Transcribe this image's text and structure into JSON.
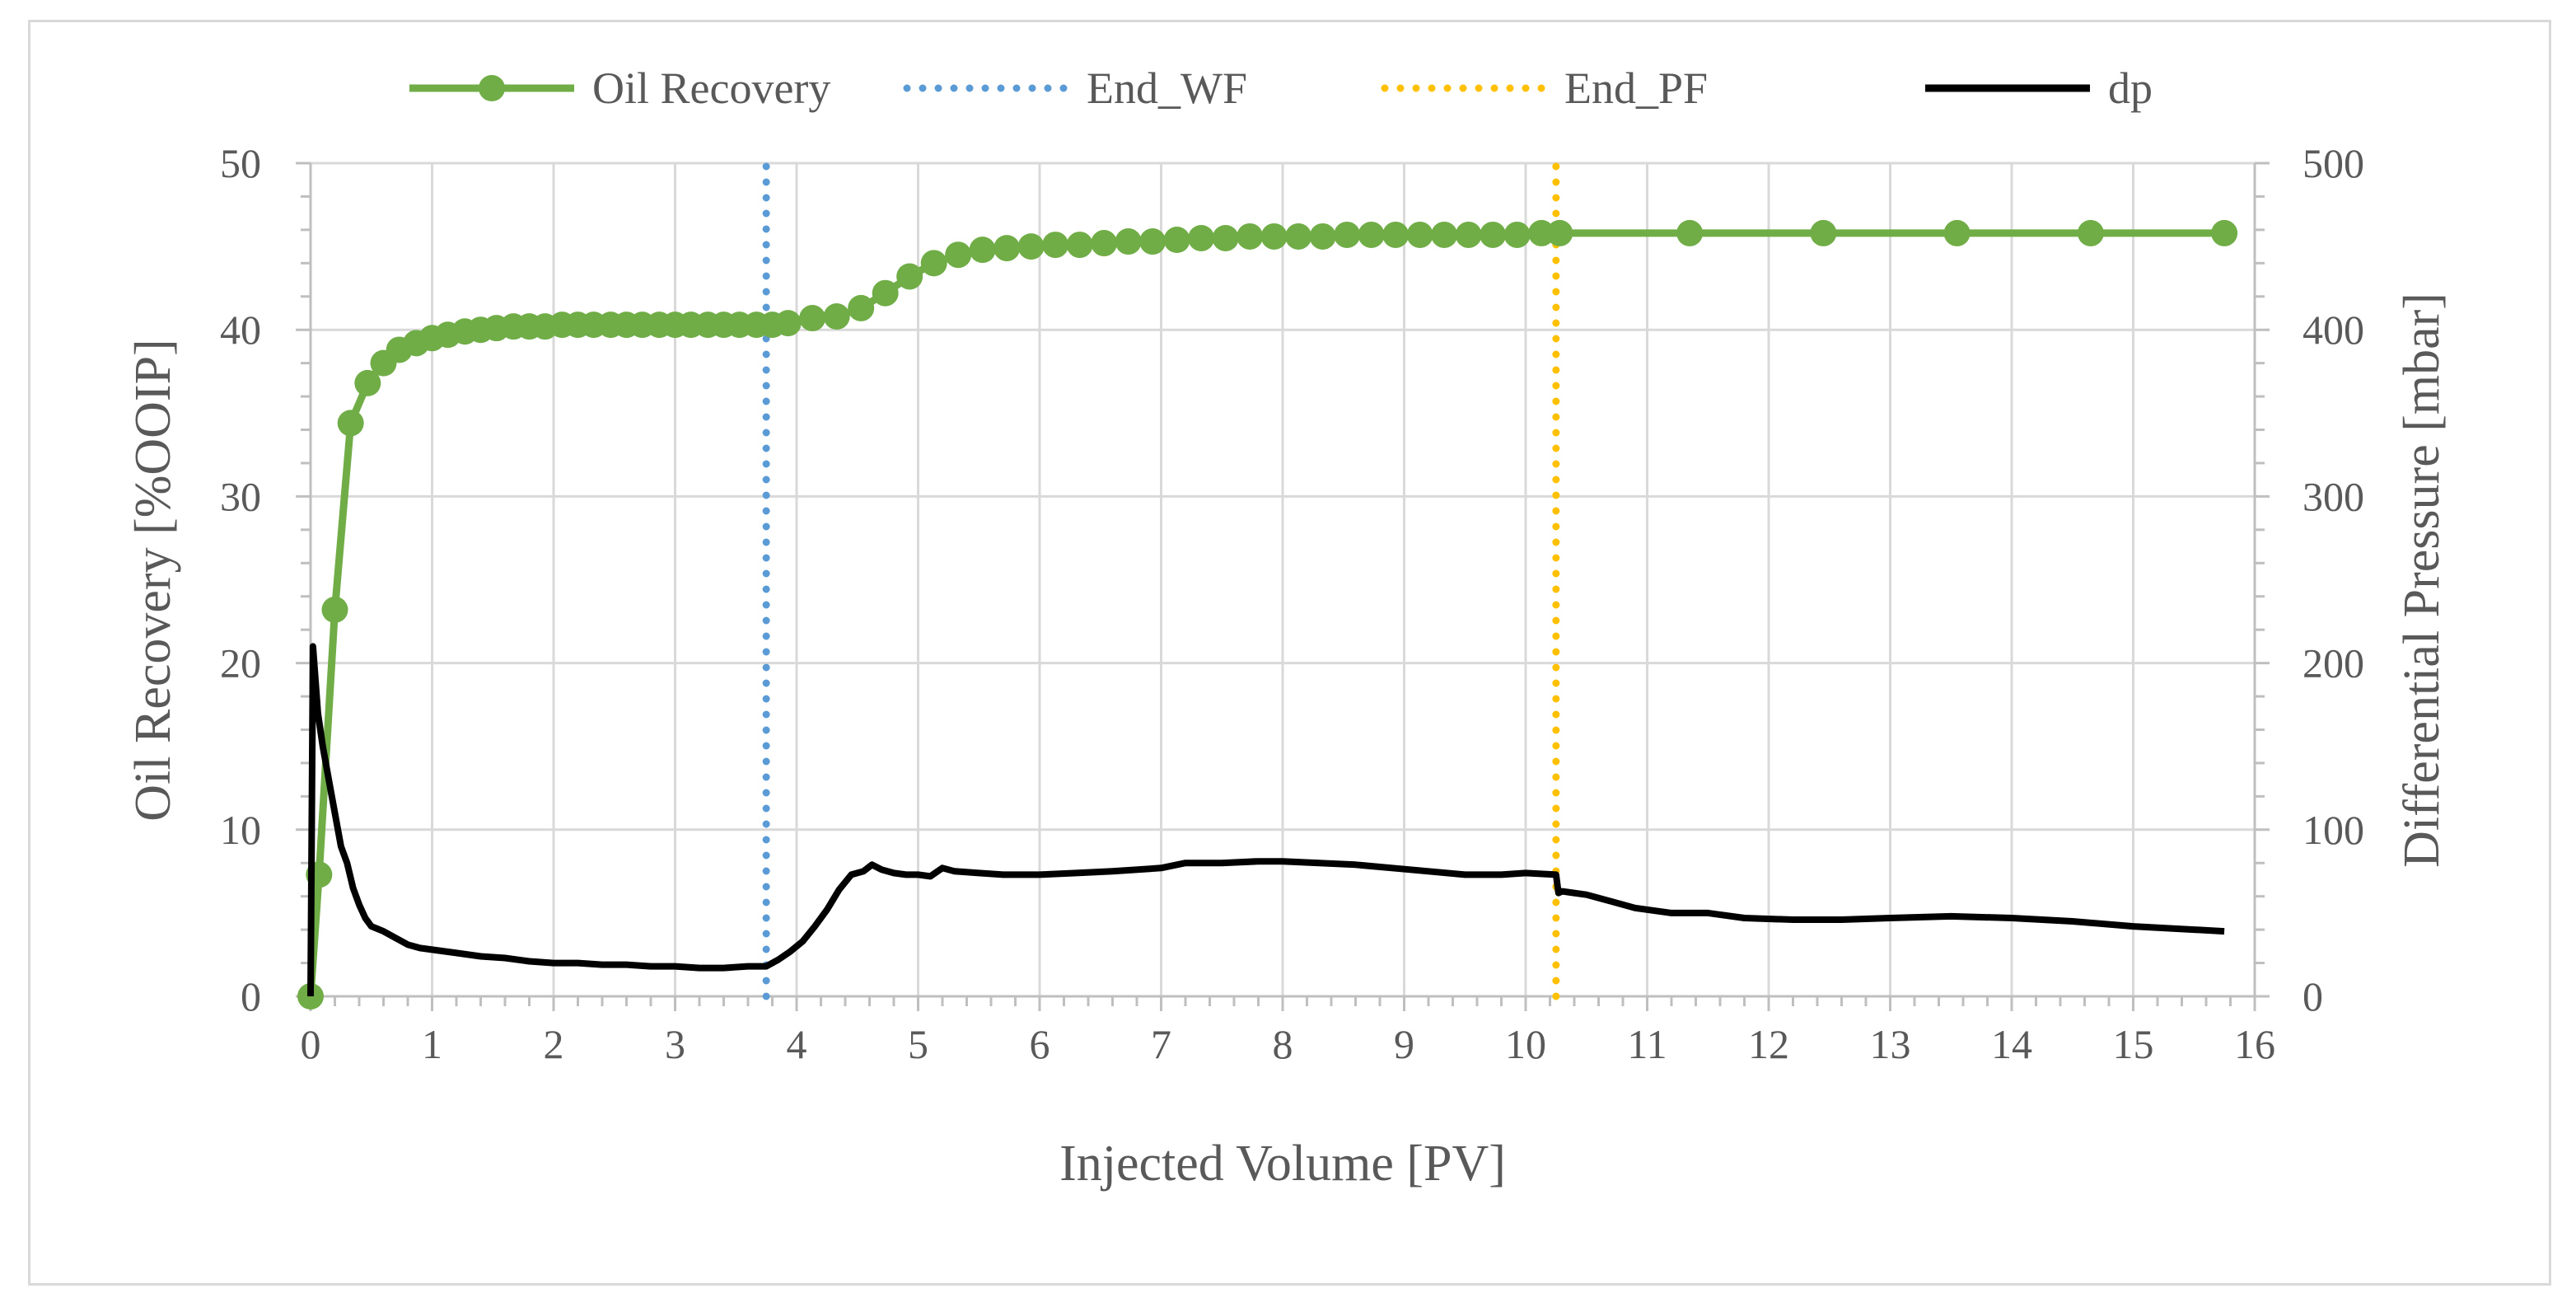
{
  "chart_data": {
    "type": "line",
    "title": "",
    "xlabel": "Injected Volume [PV]",
    "ylabel_left": "Oil Recovery [%OOIP]",
    "ylabel_right": "Differential Pressure [mbar]",
    "xlim": [
      0,
      16
    ],
    "ylim_left": [
      0,
      50
    ],
    "ylim_right": [
      0,
      500
    ],
    "x_ticks": [
      "0",
      "1",
      "2",
      "3",
      "4",
      "5",
      "6",
      "7",
      "8",
      "9",
      "10",
      "11",
      "12",
      "13",
      "14",
      "15",
      "16"
    ],
    "y_left_ticks": [
      "0",
      "10",
      "20",
      "30",
      "40",
      "50"
    ],
    "y_right_ticks": [
      "0",
      "100",
      "200",
      "300",
      "400",
      "500"
    ],
    "grid": true,
    "legend_position": "top",
    "colors": {
      "oil_recovery": "#70ad47",
      "end_wf": "#5b9bd5",
      "end_pf": "#ffc000",
      "dp": "#000000",
      "grid": "#d9d9d9",
      "axis_text": "#595959"
    },
    "series": [
      {
        "name": "Oil Recovery",
        "axis": "left",
        "style": "line-markers",
        "x": [
          0,
          0.07,
          0.2,
          0.33,
          0.47,
          0.6,
          0.73,
          0.87,
          1.0,
          1.13,
          1.27,
          1.4,
          1.53,
          1.67,
          1.8,
          1.93,
          2.07,
          2.2,
          2.33,
          2.47,
          2.6,
          2.73,
          2.87,
          3.0,
          3.13,
          3.27,
          3.4,
          3.53,
          3.67,
          3.8,
          3.93,
          4.13,
          4.33,
          4.53,
          4.73,
          4.93,
          5.13,
          5.33,
          5.53,
          5.73,
          5.93,
          6.13,
          6.33,
          6.53,
          6.73,
          6.93,
          7.13,
          7.33,
          7.53,
          7.73,
          7.93,
          8.13,
          8.33,
          8.53,
          8.73,
          8.93,
          9.13,
          9.33,
          9.53,
          9.73,
          9.93,
          10.13,
          10.28,
          11.35,
          12.45,
          13.55,
          14.65,
          15.75
        ],
        "values": [
          0,
          7.3,
          23.2,
          34.4,
          36.8,
          38.0,
          38.8,
          39.2,
          39.5,
          39.7,
          39.9,
          40.0,
          40.1,
          40.2,
          40.2,
          40.2,
          40.3,
          40.3,
          40.3,
          40.3,
          40.3,
          40.3,
          40.3,
          40.3,
          40.3,
          40.3,
          40.3,
          40.3,
          40.3,
          40.3,
          40.4,
          40.7,
          40.8,
          41.3,
          42.2,
          43.2,
          44.0,
          44.5,
          44.8,
          44.9,
          45.0,
          45.1,
          45.1,
          45.2,
          45.3,
          45.3,
          45.4,
          45.5,
          45.5,
          45.6,
          45.6,
          45.6,
          45.6,
          45.7,
          45.7,
          45.7,
          45.7,
          45.7,
          45.7,
          45.7,
          45.7,
          45.8,
          45.8,
          45.8,
          45.8,
          45.8,
          45.8,
          45.8
        ]
      },
      {
        "name": "End_WF",
        "axis": "left",
        "style": "dotted-vertical",
        "x": [
          3.75,
          3.75
        ],
        "values": [
          0,
          50
        ]
      },
      {
        "name": "End_PF",
        "axis": "left",
        "style": "dotted-vertical",
        "x": [
          10.25,
          10.25
        ],
        "values": [
          0,
          50
        ]
      },
      {
        "name": "dp",
        "axis": "right",
        "style": "line",
        "x": [
          0,
          0.02,
          0.04,
          0.06,
          0.1,
          0.15,
          0.2,
          0.25,
          0.3,
          0.35,
          0.4,
          0.45,
          0.5,
          0.6,
          0.7,
          0.8,
          0.9,
          1.0,
          1.2,
          1.4,
          1.6,
          1.8,
          2.0,
          2.2,
          2.4,
          2.6,
          2.8,
          3.0,
          3.2,
          3.4,
          3.6,
          3.75,
          3.85,
          3.95,
          4.05,
          4.15,
          4.25,
          4.35,
          4.45,
          4.55,
          4.62,
          4.7,
          4.8,
          4.9,
          5.0,
          5.1,
          5.2,
          5.3,
          5.5,
          5.7,
          6.0,
          6.3,
          6.6,
          7.0,
          7.2,
          7.5,
          7.8,
          8.0,
          8.3,
          8.6,
          8.9,
          9.2,
          9.5,
          9.8,
          10.0,
          10.25,
          10.27,
          10.3,
          10.5,
          10.7,
          10.9,
          11.2,
          11.5,
          11.8,
          12.2,
          12.6,
          13.0,
          13.5,
          14.0,
          14.5,
          15.0,
          15.5,
          15.75
        ],
        "values": [
          0,
          210,
          190,
          170,
          150,
          130,
          110,
          90,
          80,
          65,
          55,
          47,
          42,
          39,
          35,
          31,
          29,
          28,
          26,
          24,
          23,
          21,
          20,
          20,
          19,
          19,
          18,
          18,
          17,
          17,
          18,
          18,
          22,
          27,
          33,
          42,
          52,
          64,
          73,
          75,
          79,
          76,
          74,
          73,
          73,
          72,
          77,
          75,
          74,
          73,
          73,
          74,
          75,
          77,
          80,
          80,
          81,
          81,
          80,
          79,
          77,
          75,
          73,
          73,
          74,
          73,
          62,
          63,
          61,
          57,
          53,
          50,
          50,
          47,
          46,
          46,
          47,
          48,
          47,
          45,
          42,
          40,
          39
        ]
      }
    ]
  }
}
